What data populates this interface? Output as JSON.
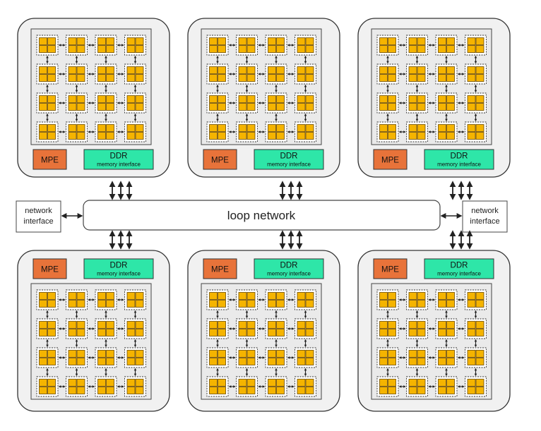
{
  "center": {
    "label": "loop network"
  },
  "side_interfaces": {
    "left": {
      "line1": "network",
      "line2": "interface"
    },
    "right": {
      "line1": "network",
      "line2": "interface"
    }
  },
  "cluster_labels": {
    "mpe": "MPE",
    "ddr_title": "DDR",
    "ddr_sub": "memory interface"
  },
  "grid": {
    "rows": 4,
    "cols": 4,
    "cores_per_tile": 4
  },
  "clusters": [
    {
      "id": "top-1",
      "position": "top"
    },
    {
      "id": "top-2",
      "position": "top"
    },
    {
      "id": "top-3",
      "position": "top"
    },
    {
      "id": "bottom-1",
      "position": "bottom"
    },
    {
      "id": "bottom-2",
      "position": "bottom"
    },
    {
      "id": "bottom-3",
      "position": "bottom"
    }
  ],
  "colors": {
    "mpe_fill": "#e8733a",
    "ddr_fill": "#2ee6a8",
    "core_fill": "#f5b400",
    "core_stroke": "#6b4a00",
    "cluster_fill": "#f1f1f1",
    "grid_fill": "#eaeaea",
    "line": "#222222"
  }
}
